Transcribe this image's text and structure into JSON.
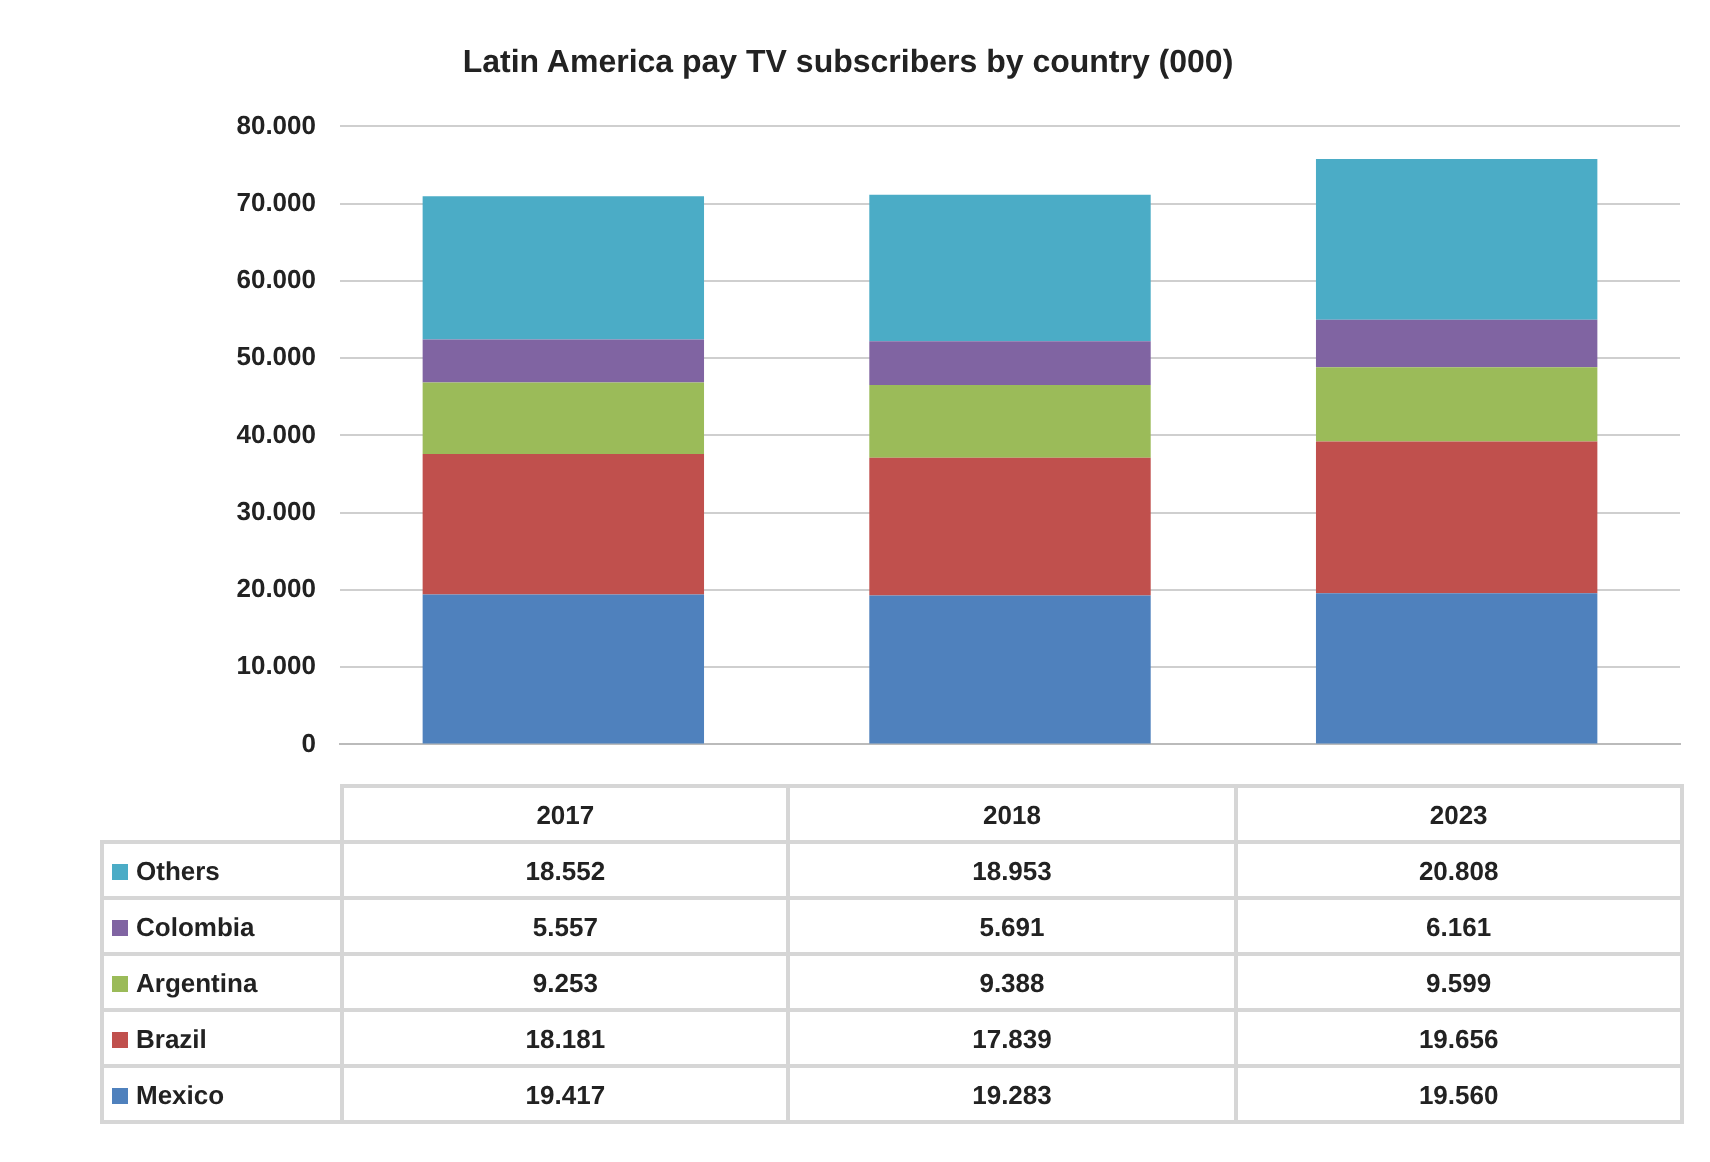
{
  "chart_data": {
    "type": "bar",
    "title": "Latin America pay TV subscribers by country (000)",
    "categories": [
      "2017",
      "2018",
      "2023"
    ],
    "stacked": true,
    "series": [
      {
        "name": "Mexico",
        "color": "#4f81bd",
        "values": [
          19417,
          19283,
          19560
        ],
        "value_labels": [
          "19.417",
          "19.283",
          "19.560"
        ]
      },
      {
        "name": "Brazil",
        "color": "#c0504d",
        "values": [
          18181,
          17839,
          19656
        ],
        "value_labels": [
          "18.181",
          "17.839",
          "19.656"
        ]
      },
      {
        "name": "Argentina",
        "color": "#9bbb59",
        "values": [
          9253,
          9388,
          9599
        ],
        "value_labels": [
          "9.253",
          "9.388",
          "9.599"
        ]
      },
      {
        "name": "Colombia",
        "color": "#8064a2",
        "values": [
          5557,
          5691,
          6161
        ],
        "value_labels": [
          "5.557",
          "5.691",
          "6.161"
        ]
      },
      {
        "name": "Others",
        "color": "#4bacc6",
        "values": [
          18552,
          18953,
          20808
        ],
        "value_labels": [
          "18.552",
          "18.953",
          "20.808"
        ]
      }
    ],
    "ylim": [
      0,
      80000
    ],
    "yticks": [
      0,
      {
        "value": 10000,
        "label": "10.000"
      },
      {
        "value": 20000,
        "label": "20.000"
      },
      {
        "value": 30000,
        "label": "30.000"
      },
      {
        "value": 40000,
        "label": "40.000"
      },
      {
        "value": 50000,
        "label": "50.000"
      },
      {
        "value": 60000,
        "label": "60.000"
      },
      {
        "value": 70000,
        "label": "70.000"
      },
      {
        "value": 80000,
        "label": "80.000"
      }
    ],
    "grid": "y",
    "legend": "bottom"
  }
}
